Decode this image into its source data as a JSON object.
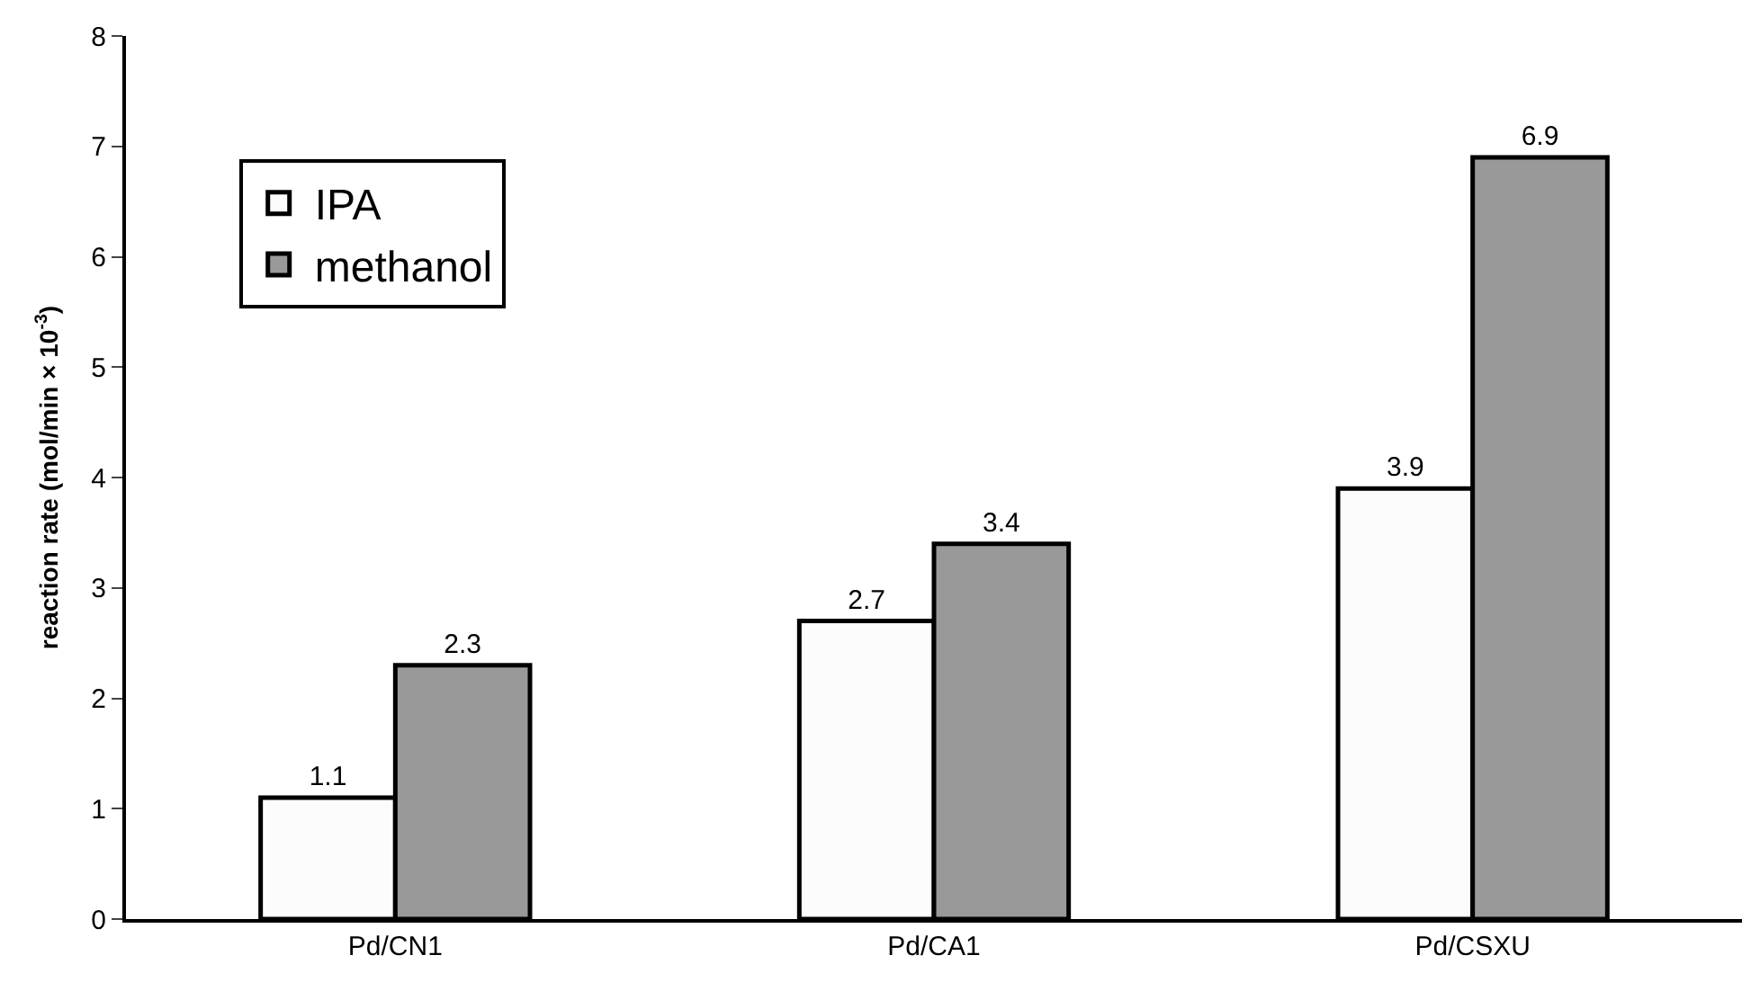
{
  "chart_data": {
    "type": "bar",
    "ylabel": "reaction rate (mol/min × 10$^{-3}$)",
    "categories": [
      "Pd/CN1",
      "Pd/CA1",
      "Pd/CSXU"
    ],
    "series": [
      {
        "name": "IPA",
        "color": "#fcfcfc",
        "values": [
          1.1,
          2.7,
          3.9
        ]
      },
      {
        "name": "methanol",
        "color": "#999999",
        "values": [
          2.3,
          3.4,
          6.9
        ]
      }
    ],
    "ylim": [
      0,
      8
    ],
    "yticks": [
      0,
      1,
      2,
      3,
      4,
      5,
      6,
      7,
      8
    ],
    "legend": "top left",
    "data_labels": true
  }
}
